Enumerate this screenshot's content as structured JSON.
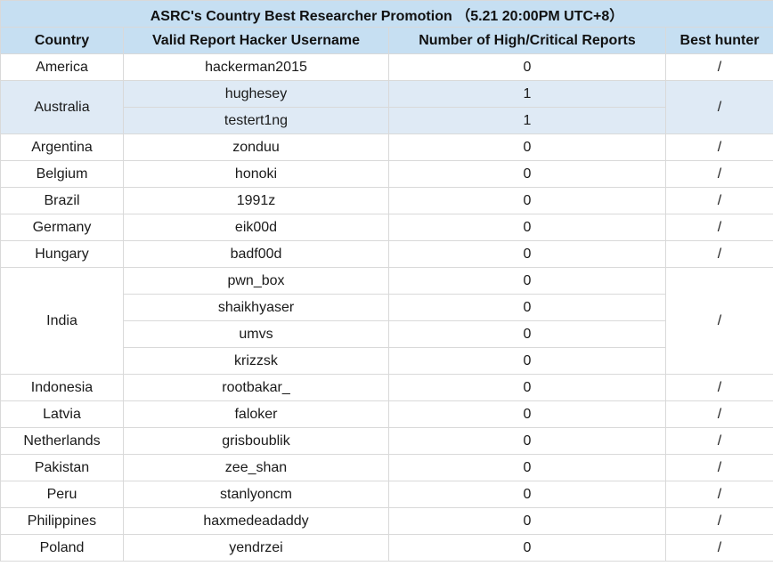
{
  "title": "ASRC's Country Best Researcher Promotion （5.21 20:00PM UTC+8）",
  "headers": {
    "country": "Country",
    "username": "Valid Report Hacker Username",
    "reports": "Number of High/Critical Reports",
    "best": "Best hunter"
  },
  "groups": [
    {
      "country": "America",
      "best": "/",
      "highlight": false,
      "entries": [
        {
          "username": "hackerman2015",
          "reports": "0"
        }
      ]
    },
    {
      "country": "Australia",
      "best": "/",
      "highlight": true,
      "entries": [
        {
          "username": "hughesey",
          "reports": "1"
        },
        {
          "username": "testert1ng",
          "reports": "1"
        }
      ]
    },
    {
      "country": "Argentina",
      "best": "/",
      "highlight": false,
      "entries": [
        {
          "username": "zonduu",
          "reports": "0"
        }
      ]
    },
    {
      "country": "Belgium",
      "best": "/",
      "highlight": false,
      "entries": [
        {
          "username": "honoki",
          "reports": "0"
        }
      ]
    },
    {
      "country": "Brazil",
      "best": "/",
      "highlight": false,
      "entries": [
        {
          "username": "1991z",
          "reports": "0"
        }
      ]
    },
    {
      "country": "Germany",
      "best": "/",
      "highlight": false,
      "entries": [
        {
          "username": "eik00d",
          "reports": "0"
        }
      ]
    },
    {
      "country": "Hungary",
      "best": "/",
      "highlight": false,
      "entries": [
        {
          "username": "badf00d",
          "reports": "0"
        }
      ]
    },
    {
      "country": "India",
      "best": "/",
      "highlight": false,
      "entries": [
        {
          "username": "pwn_box",
          "reports": "0"
        },
        {
          "username": "shaikhyaser",
          "reports": "0"
        },
        {
          "username": "umvs",
          "reports": "0"
        },
        {
          "username": "krizzsk",
          "reports": "0"
        }
      ]
    },
    {
      "country": "Indonesia",
      "best": "/",
      "highlight": false,
      "entries": [
        {
          "username": "rootbakar_",
          "reports": "0"
        }
      ]
    },
    {
      "country": "Latvia",
      "best": "/",
      "highlight": false,
      "entries": [
        {
          "username": "faloker",
          "reports": "0"
        }
      ]
    },
    {
      "country": "Netherlands",
      "best": "/",
      "highlight": false,
      "entries": [
        {
          "username": "grisboublik",
          "reports": "0"
        }
      ]
    },
    {
      "country": "Pakistan",
      "best": "/",
      "highlight": false,
      "entries": [
        {
          "username": "zee_shan",
          "reports": "0"
        }
      ]
    },
    {
      "country": "Peru",
      "best": "/",
      "highlight": false,
      "entries": [
        {
          "username": "stanlyoncm",
          "reports": "0"
        }
      ]
    },
    {
      "country": "Philippines",
      "best": "/",
      "highlight": false,
      "entries": [
        {
          "username": "haxmedeadaddy",
          "reports": "0"
        }
      ]
    },
    {
      "country": "Poland",
      "best": "/",
      "highlight": false,
      "entries": [
        {
          "username": "yendrzei",
          "reports": "0"
        }
      ]
    }
  ]
}
